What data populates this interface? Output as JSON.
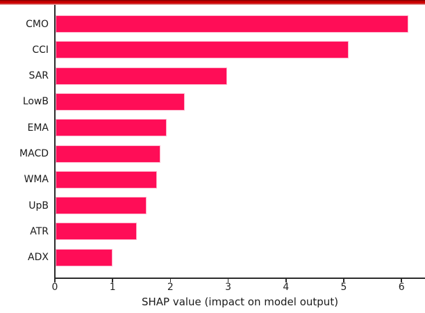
{
  "chart_data": {
    "type": "bar",
    "orientation": "horizontal",
    "title": "",
    "categories": [
      "CMO",
      "CCI",
      "SAR",
      "LowB",
      "EMA",
      "MACD",
      "WMA",
      "UpB",
      "ATR",
      "ADX"
    ],
    "values": [
      6.1,
      5.07,
      2.97,
      2.23,
      1.92,
      1.82,
      1.75,
      1.57,
      1.41,
      0.99
    ],
    "xlabel": "SHAP value (impact on model output)",
    "ylabel": "",
    "xticks": [
      0,
      1,
      2,
      3,
      4,
      5,
      6
    ],
    "xlim": [
      0,
      6.4
    ],
    "grid": false,
    "legend": null,
    "bar_color": "#ff0d57",
    "bar_edge_color": "#ffb0c9",
    "axis_color": "#2b2b2b",
    "text_color": "#1a1a1a"
  },
  "decorations": {
    "top_border_color": "#cc0000"
  }
}
